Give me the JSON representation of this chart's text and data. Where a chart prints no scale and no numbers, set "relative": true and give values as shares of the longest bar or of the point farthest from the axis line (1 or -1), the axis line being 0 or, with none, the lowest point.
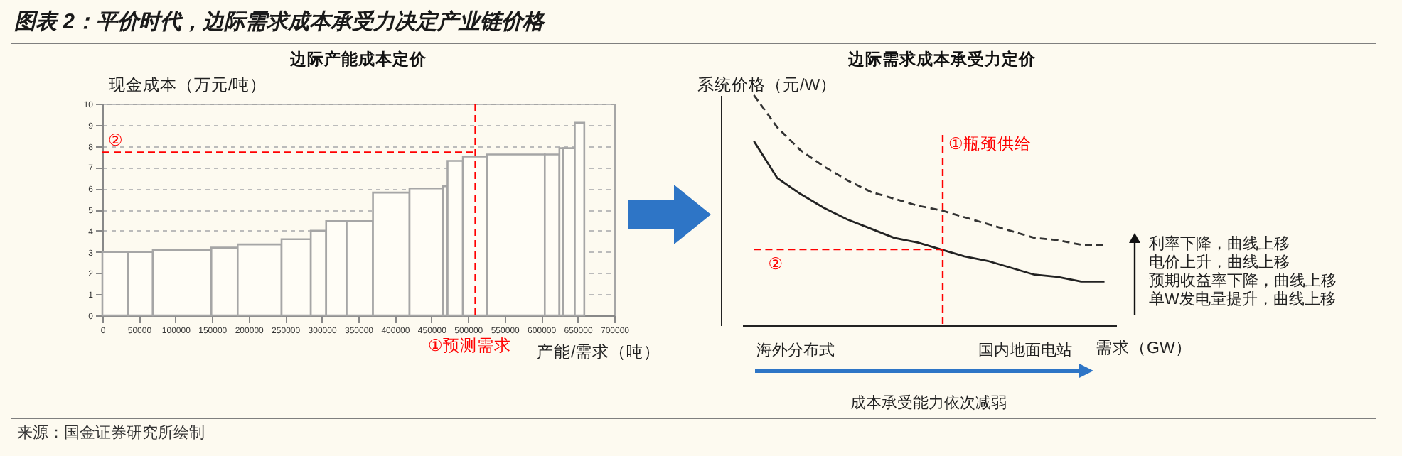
{
  "chart_data": [
    {
      "type": "histogram",
      "title": "边际产能成本定价",
      "ylabel": "现金成本（万元/吨）",
      "xlabel": "产能/需求（吨）",
      "bins": [
        0,
        35000,
        69000,
        149000,
        185000,
        245000,
        285000,
        306000,
        334000,
        370000,
        420000,
        466000,
        472000,
        493000,
        526000,
        605000,
        625000,
        630000,
        646000,
        659000
      ],
      "values": [
        3.0,
        3.0,
        3.1,
        3.2,
        3.35,
        3.6,
        4.0,
        4.45,
        4.45,
        5.8,
        6.0,
        6.1,
        7.3,
        7.5,
        7.6,
        7.6,
        7.9,
        7.9,
        9.1
      ],
      "color": "#a6a6a6",
      "xlim": [
        0,
        700000
      ],
      "xticks": [
        0,
        50000,
        100000,
        150000,
        200000,
        250000,
        300000,
        350000,
        400000,
        450000,
        500000,
        550000,
        600000,
        650000,
        700000
      ],
      "ylim": [
        0,
        10
      ],
      "yticks": [
        0,
        1,
        2,
        3,
        4,
        5,
        6,
        7,
        8,
        9,
        10
      ],
      "grid": "y",
      "ref_lines": [
        {
          "axis": "x",
          "value": 510000,
          "color": "#ff0000",
          "line_style": "dashed"
        },
        {
          "axis": "y",
          "value": 7.7,
          "color": "#ff0000",
          "line_style": "dashed"
        }
      ],
      "annotations": [
        {
          "text": "②",
          "y": 7.7
        },
        "①预测需求",
        "图表 2：平价时代，边际需求成本承受力决定产业链价格",
        "来源：国金证券研究所绘制"
      ]
    },
    {
      "type": "line",
      "title": "边际需求成本承受力定价",
      "ylabel": "系统价格（元/W）",
      "xlabel": "需求（GW）",
      "relative": true,
      "categories": [
        null,
        null,
        null,
        null,
        null,
        null,
        null,
        null,
        null,
        null,
        null,
        null,
        null,
        null,
        null,
        null
      ],
      "series": [
        {
          "color": "#222222",
          "line_style": "solid",
          "values": [
            0.8,
            0.64,
            0.57,
            0.51,
            0.46,
            0.42,
            0.38,
            0.36,
            0.33,
            0.3,
            0.28,
            0.25,
            0.22,
            0.21,
            0.19,
            0.19
          ]
        },
        {
          "color": "#333333",
          "line_style": "dashed",
          "values": [
            1.0,
            0.86,
            0.76,
            0.69,
            0.63,
            0.58,
            0.55,
            0.52,
            0.5,
            0.47,
            0.44,
            0.41,
            0.38,
            0.37,
            0.35,
            0.35
          ]
        }
      ],
      "ref_lines": [
        {
          "axis": "y",
          "value": 0.33,
          "color": "#ff0000",
          "line_style": "dashed"
        }
      ],
      "annotations": [
        {
          "text": "②",
          "y": 0.33
        },
        "①瓶颈供给",
        "海外分布式",
        "国内地面电站",
        "成本承受能力依次减弱",
        "利率下降，曲线上移",
        "电价上升，曲线上移",
        "预期收益率下降，曲线上移",
        "单W发电量提升，曲线上移"
      ]
    }
  ]
}
